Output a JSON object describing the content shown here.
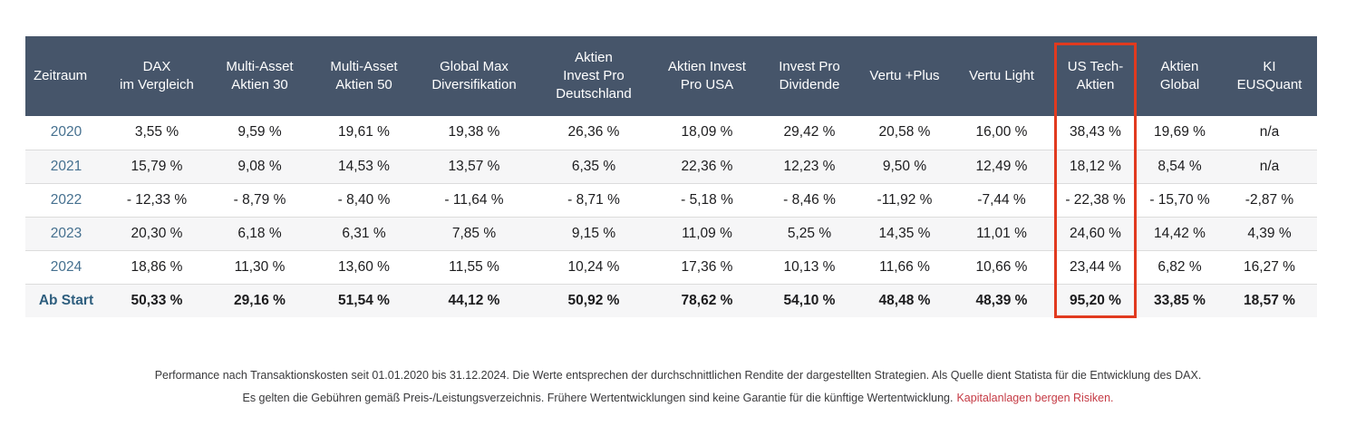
{
  "colors": {
    "header_bg": "#46556a",
    "header_text": "#ffffff",
    "row_stripe": "#f6f6f7",
    "row_border": "#dcdcdc",
    "cell_text": "#1c1c1e",
    "year_link": "#45708f",
    "total_label": "#2e5e7e",
    "highlight_border": "#e13a1f",
    "footnote_text": "#39393b",
    "footnote_warning": "#c53a44"
  },
  "chart_data": {
    "type": "table",
    "highlighted_column": "US Tech-Aktien",
    "columns": [
      "Zeitraum",
      "DAX\nim Vergleich",
      "Multi-Asset\nAktien 30",
      "Multi-Asset\nAktien 50",
      "Global Max\nDiversifikation",
      "Aktien\nInvest Pro\nDeutschland",
      "Aktien Invest\nPro USA",
      "Invest Pro\nDividende",
      "Vertu +Plus",
      "Vertu Light",
      "US Tech-\nAktien",
      "Aktien\nGlobal",
      "KI\nEUSQuant"
    ],
    "rows": [
      {
        "label": "2020",
        "is_year_link": true,
        "bold": false,
        "stripe": false,
        "values": [
          "3,55 %",
          "9,59 %",
          "19,61 %",
          "19,38 %",
          "26,36 %",
          "18,09 %",
          "29,42 %",
          "20,58 %",
          "16,00 %",
          "38,43 %",
          "19,69 %",
          "n/a"
        ]
      },
      {
        "label": "2021",
        "is_year_link": true,
        "bold": false,
        "stripe": true,
        "values": [
          "15,79 %",
          "9,08 %",
          "14,53 %",
          "13,57 %",
          "6,35 %",
          "22,36 %",
          "12,23 %",
          "9,50 %",
          "12,49 %",
          "18,12 %",
          "8,54 %",
          "n/a"
        ]
      },
      {
        "label": "2022",
        "is_year_link": true,
        "bold": false,
        "stripe": false,
        "values": [
          "- 12,33 %",
          "- 8,79 %",
          "- 8,40 %",
          "- 11,64 %",
          "- 8,71 %",
          "- 5,18 %",
          "- 8,46 %",
          "-11,92 %",
          "-7,44 %",
          "- 22,38 %",
          "- 15,70 %",
          "-2,87 %"
        ]
      },
      {
        "label": "2023",
        "is_year_link": true,
        "bold": false,
        "stripe": true,
        "values": [
          "20,30 %",
          "6,18 %",
          "6,31 %",
          "7,85 %",
          "9,15 %",
          "11,09 %",
          "5,25 %",
          "14,35 %",
          "11,01 %",
          "24,60 %",
          "14,42 %",
          "4,39 %"
        ]
      },
      {
        "label": "2024",
        "is_year_link": true,
        "bold": false,
        "stripe": false,
        "values": [
          "18,86 %",
          "11,30 %",
          "13,60 %",
          "11,55 %",
          "10,24 %",
          "17,36 %",
          "10,13 %",
          "11,66 %",
          "10,66 %",
          "23,44 %",
          "6,82 %",
          "16,27 %"
        ]
      },
      {
        "label": "Ab Start",
        "is_year_link": false,
        "bold": true,
        "stripe": true,
        "values": [
          "50,33 %",
          "29,16 %",
          "51,54 %",
          "44,12 %",
          "50,92 %",
          "78,62 %",
          "54,10 %",
          "48,48 %",
          "48,39 %",
          "95,20 %",
          "33,85 %",
          "18,57 %"
        ]
      }
    ]
  },
  "footnote": {
    "line1": "Performance nach Transaktionskosten seit 01.01.2020 bis 31.12.2024. Die Werte entsprechen der durchschnittlichen Rendite der dargestellten Strategien. Als Quelle dient Statista für die Entwicklung des DAX.",
    "line2": "Es gelten die Gebühren gemäß Preis-/Leistungsverzeichnis. Frühere Wertentwicklungen sind keine Garantie für die künftige Wertentwicklung.",
    "line2_warning": "Kapitalanlagen bergen Risiken."
  }
}
